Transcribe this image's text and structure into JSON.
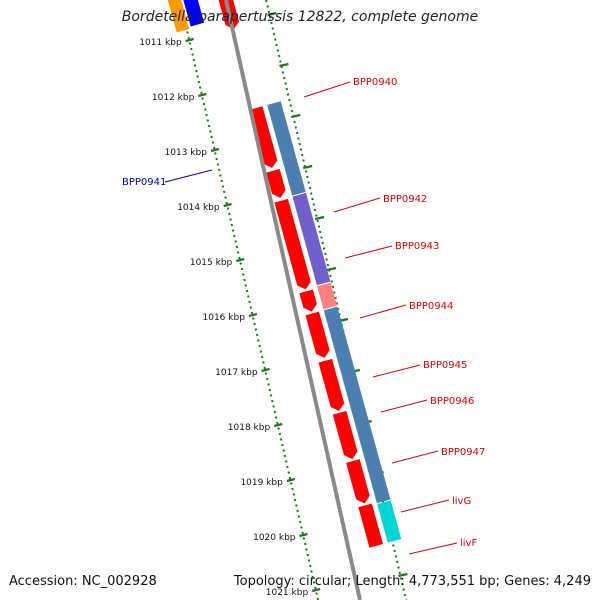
{
  "title": "Bordetella parapertussis 12822, complete genome",
  "footer": {
    "accession": "Accession: NC_002928",
    "info": "Topology: circular; Length: 4,773,551 bp; Genes: 4,249"
  },
  "ruler": {
    "labels": [
      "1011 kbp",
      "1012 kbp",
      "1013 kbp",
      "1014 kbp",
      "1015 kbp",
      "1016 kbp",
      "1017 kbp",
      "1018 kbp",
      "1019 kbp",
      "1020 kbp",
      "1021 kbp"
    ]
  },
  "gene_labels": [
    {
      "name": "BPP0940",
      "color": "#dd0000"
    },
    {
      "name": "BPP0941",
      "color": "#0000aa"
    },
    {
      "name": "BPP0942",
      "color": "#dd0000"
    },
    {
      "name": "BPP0943",
      "color": "#dd0000"
    },
    {
      "name": "BPP0944",
      "color": "#dd0000"
    },
    {
      "name": "BPP0945",
      "color": "#dd0000"
    },
    {
      "name": "BPP0946",
      "color": "#dd0000"
    },
    {
      "name": "BPP0947",
      "color": "#dd0000"
    },
    {
      "name": "livG",
      "color": "#dd0000"
    },
    {
      "name": "livF",
      "color": "#dd0000"
    }
  ],
  "colors": {
    "gene": "#ff0000",
    "backbone": "#8a8a8a",
    "ticks": "#1a7a1a",
    "cog_cyan": "#00d6d6",
    "cog_steel": "#4a7fb0",
    "cog_purple": "#7060cc",
    "cog_pink": "#ff8080",
    "orange": "#ff9900",
    "blue": "#0000ff"
  }
}
